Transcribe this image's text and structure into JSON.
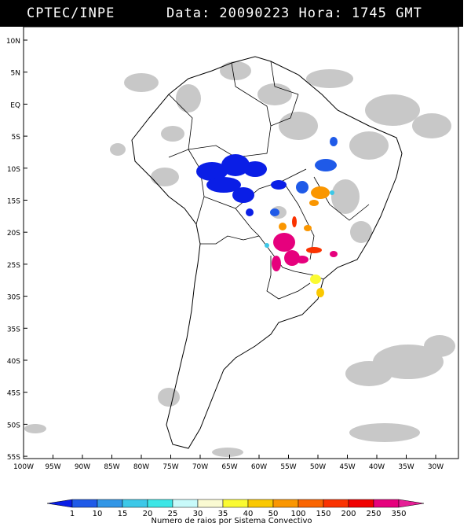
{
  "header": {
    "agency": "CPTEC/INPE",
    "datetime": "Data: 20090223 Hora: 1745 GMT"
  },
  "axes": {
    "lat_labels": [
      "10N",
      "5N",
      "EQ",
      "5S",
      "10S",
      "15S",
      "20S",
      "25S",
      "30S",
      "35S",
      "40S",
      "45S",
      "50S",
      "55S"
    ],
    "lon_labels": [
      "100W",
      "95W",
      "90W",
      "85W",
      "80W",
      "75W",
      "70W",
      "65W",
      "60W",
      "55W",
      "50W",
      "45W",
      "40W",
      "35W",
      "30W"
    ]
  },
  "legend": {
    "ticks": [
      "1",
      "10",
      "15",
      "20",
      "25",
      "30",
      "35",
      "40",
      "50",
      "100",
      "150",
      "200",
      "250",
      "350"
    ],
    "colors": [
      "#0a1ee6",
      "#1f5ae8",
      "#3296e6",
      "#3cc8e8",
      "#3ce6e6",
      "#c8fafa",
      "#fafad2",
      "#fafa32",
      "#fac800",
      "#fa9600",
      "#fa6400",
      "#fa3200",
      "#f00000",
      "#e6007d",
      "#e61e96"
    ],
    "caption": "Numero de raios por Sistema Convectivo"
  }
}
